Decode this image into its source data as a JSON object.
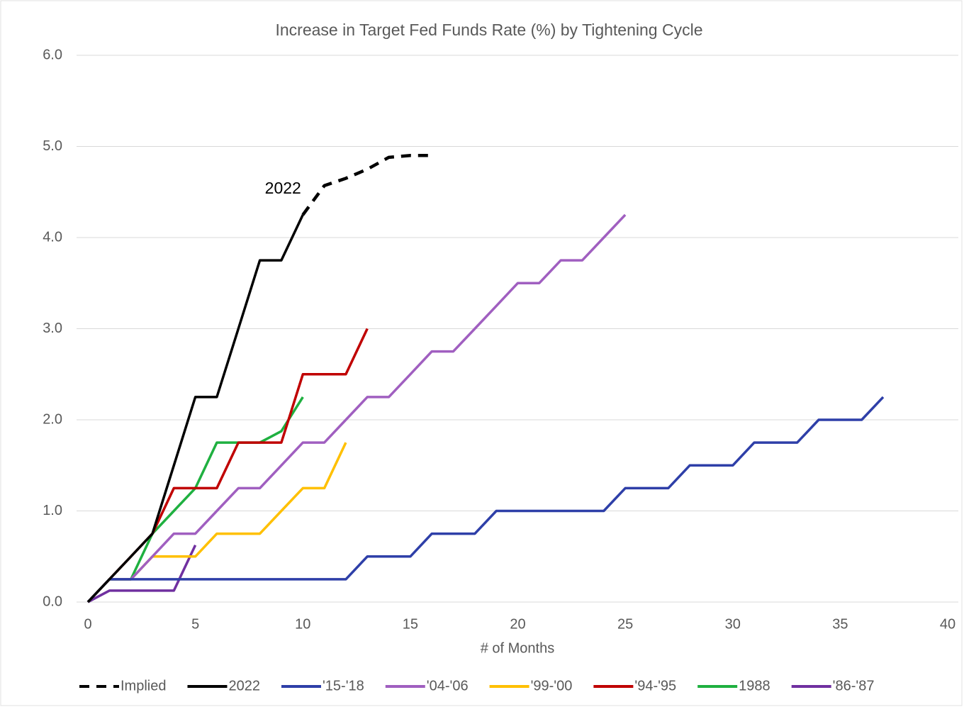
{
  "chart_data": {
    "type": "line",
    "title": "Increase in Target Fed Funds Rate (%) by Tightening Cycle",
    "xlabel": "# of Months",
    "annotation": "2022",
    "xlim": [
      0,
      40
    ],
    "xticks": [
      0,
      5,
      10,
      15,
      20,
      25,
      30,
      35,
      40
    ],
    "ylim": [
      0,
      6
    ],
    "yticks": [
      {
        "value": 0,
        "label": "0.0"
      },
      {
        "value": 1,
        "label": "1.0"
      },
      {
        "value": 2,
        "label": "2.0"
      },
      {
        "value": 3,
        "label": "3.0"
      },
      {
        "value": 4,
        "label": "4.0"
      },
      {
        "value": 5,
        "label": "5.0"
      },
      {
        "value": 6,
        "label": "6.0"
      }
    ],
    "grid": true,
    "legend": "bottom",
    "series": [
      {
        "name": "Implied",
        "color": "#000000",
        "dashed": true,
        "x": [
          10,
          11,
          12,
          13,
          14,
          15,
          16
        ],
        "values": [
          4.25,
          4.57,
          4.65,
          4.75,
          4.88,
          4.9,
          4.9
        ]
      },
      {
        "name": "2022",
        "color": "#000000",
        "x": [
          0,
          1,
          2,
          3,
          4,
          5,
          6,
          7,
          8,
          9,
          10
        ],
        "values": [
          0,
          0.25,
          0.5,
          0.75,
          1.5,
          2.25,
          2.25,
          3.0,
          3.75,
          3.75,
          4.25
        ]
      },
      {
        "name": "'15-'18",
        "color": "#2e3fa8",
        "x": [
          0,
          1,
          2,
          3,
          4,
          5,
          6,
          7,
          8,
          9,
          10,
          11,
          12,
          13,
          14,
          15,
          16,
          17,
          18,
          19,
          20,
          21,
          22,
          23,
          24,
          25,
          26,
          27,
          28,
          29,
          30,
          31,
          32,
          33,
          34,
          35,
          36,
          37
        ],
        "values": [
          0,
          0.25,
          0.25,
          0.25,
          0.25,
          0.25,
          0.25,
          0.25,
          0.25,
          0.25,
          0.25,
          0.25,
          0.25,
          0.5,
          0.5,
          0.5,
          0.75,
          0.75,
          0.75,
          1.0,
          1.0,
          1.0,
          1.0,
          1.0,
          1.0,
          1.25,
          1.25,
          1.25,
          1.5,
          1.5,
          1.5,
          1.75,
          1.75,
          1.75,
          2.0,
          2.0,
          2.0,
          2.25
        ]
      },
      {
        "name": "'04-'06",
        "color": "#a05fc0",
        "x": [
          0,
          1,
          2,
          3,
          4,
          5,
          6,
          7,
          8,
          9,
          10,
          11,
          12,
          13,
          14,
          15,
          16,
          17,
          18,
          19,
          20,
          21,
          22,
          23,
          24,
          25
        ],
        "values": [
          0,
          0.25,
          0.25,
          0.5,
          0.75,
          0.75,
          1.0,
          1.25,
          1.25,
          1.5,
          1.75,
          1.75,
          2.0,
          2.25,
          2.25,
          2.5,
          2.75,
          2.75,
          3.0,
          3.25,
          3.5,
          3.5,
          3.75,
          3.75,
          4.0,
          4.25
        ]
      },
      {
        "name": "'99-'00",
        "color": "#ffc000",
        "x": [
          0,
          1,
          2,
          3,
          4,
          5,
          6,
          7,
          8,
          9,
          10,
          11,
          12
        ],
        "values": [
          0,
          0.25,
          0.25,
          0.5,
          0.5,
          0.5,
          0.75,
          0.75,
          0.75,
          1.0,
          1.25,
          1.25,
          1.75
        ]
      },
      {
        "name": "'94-'95",
        "color": "#c00000",
        "x": [
          0,
          1,
          2,
          3,
          4,
          5,
          6,
          7,
          8,
          9,
          10,
          11,
          12,
          13
        ],
        "values": [
          0,
          0.25,
          0.5,
          0.75,
          1.25,
          1.25,
          1.25,
          1.75,
          1.75,
          1.75,
          2.5,
          2.5,
          2.5,
          3.0
        ]
      },
      {
        "name": "1988",
        "color": "#1fb040",
        "x": [
          0,
          1,
          2,
          3,
          4,
          5,
          6,
          7,
          8,
          9,
          10
        ],
        "values": [
          0,
          0.25,
          0.25,
          0.75,
          1.0,
          1.25,
          1.75,
          1.75,
          1.75,
          1.875,
          2.25
        ]
      },
      {
        "name": "'86-'87",
        "color": "#7030a0",
        "x": [
          0,
          1,
          2,
          3,
          4,
          5
        ],
        "values": [
          0,
          0.125,
          0.125,
          0.125,
          0.125,
          0.625
        ]
      }
    ]
  }
}
